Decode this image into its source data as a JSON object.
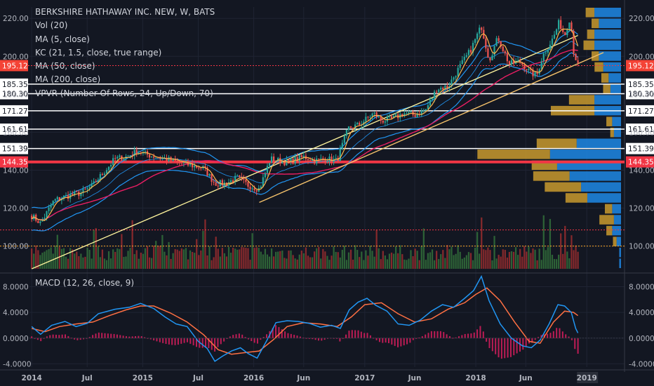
{
  "header": {
    "symbol_title": "BERKSHIRE HATHAWAY INC. NEW, W, BATS",
    "indicators": [
      "Vol (20)",
      "MA (5, close)",
      "KC (21, 1.5, close, true range)",
      "MA (50, close)",
      "MA (200, close)",
      "VPVR (Number Of Rows, 24, Up/Down, 70)"
    ]
  },
  "macd_panel": {
    "title": "MACD (12, 26, close, 9)"
  },
  "colors": {
    "background": "#131722",
    "up": "#26a69a",
    "down": "#ef5350",
    "ma5": "#ffb74d",
    "kc": "#2196f3",
    "ma50": "#e91e63",
    "ma200": "#fff59d",
    "trendline": "#f5c26b",
    "macd": "#2196f3",
    "signal": "#ff7043",
    "hist": "#e91e63",
    "vp_up": "#1e88e5",
    "vp_down": "#c99a2e",
    "price_label": "#f44336",
    "vol_up": "#43a047",
    "vol_down": "#e53935"
  },
  "chart_data": [
    {
      "type": "candlestick",
      "title": "BERKSHIRE HATHAWAY INC. NEW, W, BATS",
      "y_ticks": [
        100,
        120,
        140,
        160,
        180,
        200,
        220
      ],
      "y_tick_labels": [
        "100.00",
        "120.00",
        "140.00",
        "160.00",
        "180.00",
        "200.00",
        "220.00"
      ],
      "ylim": [
        88,
        226
      ],
      "x_tick_labels": [
        "2014",
        "Jul",
        "2015",
        "Jul",
        "2016",
        "Jun",
        "2017",
        "Jun",
        "2018",
        "Jun",
        "2019"
      ],
      "x_tick_times": [
        2014.0,
        2014.5,
        2015.0,
        2015.5,
        2016.0,
        2016.45,
        2017.0,
        2017.45,
        2018.0,
        2018.45,
        2019.0
      ],
      "xlim": [
        2013.98,
        2019.15
      ],
      "price_anchors": [
        [
          2014.0,
          116
        ],
        [
          2014.08,
          112
        ],
        [
          2014.2,
          124
        ],
        [
          2014.35,
          127
        ],
        [
          2014.45,
          128
        ],
        [
          2014.55,
          132
        ],
        [
          2014.65,
          139
        ],
        [
          2014.75,
          146
        ],
        [
          2014.85,
          147
        ],
        [
          2014.95,
          150
        ],
        [
          2015.05,
          148
        ],
        [
          2015.2,
          146
        ],
        [
          2015.4,
          143
        ],
        [
          2015.55,
          141
        ],
        [
          2015.65,
          133
        ],
        [
          2015.75,
          133
        ],
        [
          2015.85,
          136
        ],
        [
          2015.95,
          132
        ],
        [
          2016.05,
          130
        ],
        [
          2016.15,
          146
        ],
        [
          2016.3,
          144
        ],
        [
          2016.45,
          147
        ],
        [
          2016.55,
          145
        ],
        [
          2016.65,
          146
        ],
        [
          2016.75,
          145
        ],
        [
          2016.85,
          162
        ],
        [
          2016.95,
          164
        ],
        [
          2017.08,
          170
        ],
        [
          2017.15,
          166
        ],
        [
          2017.25,
          167
        ],
        [
          2017.35,
          170
        ],
        [
          2017.45,
          169
        ],
        [
          2017.55,
          172
        ],
        [
          2017.65,
          183
        ],
        [
          2017.75,
          184
        ],
        [
          2017.85,
          194
        ],
        [
          2017.95,
          203
        ],
        [
          2018.05,
          216
        ],
        [
          2018.12,
          198
        ],
        [
          2018.2,
          210
        ],
        [
          2018.3,
          196
        ],
        [
          2018.4,
          197
        ],
        [
          2018.5,
          191
        ],
        [
          2018.55,
          190
        ],
        [
          2018.6,
          200
        ],
        [
          2018.7,
          210
        ],
        [
          2018.75,
          218
        ],
        [
          2018.8,
          211
        ],
        [
          2018.85,
          221
        ],
        [
          2018.88,
          203
        ],
        [
          2018.92,
          195
        ]
      ],
      "horizontal_levels": [
        {
          "label": "185.35",
          "value": 185.35
        },
        {
          "label": "180.30",
          "value": 180.3
        },
        {
          "label": "171.27",
          "value": 171.27
        },
        {
          "label": "161.61",
          "value": 161.61
        },
        {
          "label": "151.39",
          "value": 151.39
        },
        {
          "label": "144.35",
          "value": 144.35,
          "highlight": true
        }
      ],
      "last_price": {
        "label": "195.12",
        "value": 195.12
      },
      "ma200_anchors": [
        [
          2014.0,
          88
        ],
        [
          2018.92,
          211
        ]
      ],
      "trendlines": [
        {
          "name": "",
          "points": [
            [
              2016.05,
              123
            ],
            [
              2019.15,
              202
            ]
          ]
        }
      ],
      "volume_profile": {
        "rows_top_to_bottom": [
          {
            "up": 0.3,
            "down": 0.12
          },
          {
            "up": 0.25,
            "down": 0.1
          },
          {
            "up": 0.3,
            "down": 0.1
          },
          {
            "up": 0.3,
            "down": 0.15
          },
          {
            "up": 0.25,
            "down": 0.1
          },
          {
            "up": 0.2,
            "down": 0.12
          },
          {
            "up": 0.14,
            "down": 0.1
          },
          {
            "up": 0.12,
            "down": 0.1
          },
          {
            "up": 0.3,
            "down": 0.35
          },
          {
            "up": 0.3,
            "down": 0.6
          },
          {
            "up": 0.1,
            "down": 0.08
          },
          {
            "up": 0.08,
            "down": 0.05
          },
          {
            "up": 0.5,
            "down": 0.55
          },
          {
            "up": 0.8,
            "down": 1.0
          },
          {
            "up": 0.72,
            "down": 0.35
          },
          {
            "up": 0.58,
            "down": 0.5
          },
          {
            "up": 0.45,
            "down": 0.5
          },
          {
            "up": 0.38,
            "down": 0.3
          },
          {
            "up": 0.1,
            "down": 0.1
          },
          {
            "up": 0.08,
            "down": 0.2
          },
          {
            "up": 0.1,
            "down": 0.08
          },
          {
            "up": 0.05,
            "down": 0.05
          },
          {
            "up": 0.02,
            "down": 0.0
          },
          {
            "up": 0.02,
            "down": 0.0
          }
        ]
      }
    },
    {
      "type": "line",
      "title": "MACD (12, 26, close, 9)",
      "y_ticks": [
        -4,
        0,
        4,
        8
      ],
      "y_tick_labels": [
        "-4.0000",
        "0.0000",
        "4.0000",
        "8.0000"
      ],
      "ylim": [
        -4.5,
        9.8
      ],
      "xlim": [
        2013.98,
        2019.15
      ],
      "series": [
        {
          "name": "",
          "points": [
            [
              2014.0,
              1.8
            ],
            [
              2014.08,
              0.6
            ],
            [
              2014.18,
              2.0
            ],
            [
              2014.3,
              2.6
            ],
            [
              2014.4,
              1.8
            ],
            [
              2014.5,
              2.3
            ],
            [
              2014.6,
              3.8
            ],
            [
              2014.75,
              4.5
            ],
            [
              2014.88,
              4.8
            ],
            [
              2014.98,
              5.4
            ],
            [
              2015.1,
              4.6
            ],
            [
              2015.2,
              3.3
            ],
            [
              2015.3,
              2.2
            ],
            [
              2015.4,
              1.8
            ],
            [
              2015.5,
              -0.5
            ],
            [
              2015.58,
              -1.6
            ],
            [
              2015.65,
              -3.6
            ],
            [
              2015.72,
              -2.8
            ],
            [
              2015.8,
              -2.0
            ],
            [
              2015.88,
              -1.5
            ],
            [
              2015.95,
              -2.4
            ],
            [
              2016.03,
              -3.1
            ],
            [
              2016.12,
              -0.3
            ],
            [
              2016.2,
              2.4
            ],
            [
              2016.3,
              2.7
            ],
            [
              2016.4,
              2.6
            ],
            [
              2016.5,
              2.3
            ],
            [
              2016.6,
              1.7
            ],
            [
              2016.7,
              2.0
            ],
            [
              2016.78,
              1.5
            ],
            [
              2016.86,
              4.4
            ],
            [
              2016.94,
              5.6
            ],
            [
              2017.02,
              6.2
            ],
            [
              2017.1,
              5.1
            ],
            [
              2017.2,
              4.2
            ],
            [
              2017.3,
              2.2
            ],
            [
              2017.4,
              2.0
            ],
            [
              2017.5,
              2.8
            ],
            [
              2017.6,
              4.2
            ],
            [
              2017.7,
              5.2
            ],
            [
              2017.8,
              4.8
            ],
            [
              2017.9,
              6.2
            ],
            [
              2017.98,
              7.4
            ],
            [
              2018.05,
              9.6
            ],
            [
              2018.12,
              5.8
            ],
            [
              2018.22,
              2.2
            ],
            [
              2018.32,
              0.0
            ],
            [
              2018.42,
              -1.2
            ],
            [
              2018.5,
              -1.5
            ],
            [
              2018.58,
              -0.3
            ],
            [
              2018.66,
              2.2
            ],
            [
              2018.74,
              5.2
            ],
            [
              2018.8,
              5.0
            ],
            [
              2018.86,
              4.0
            ],
            [
              2018.9,
              1.5
            ],
            [
              2018.92,
              0.8
            ]
          ]
        },
        {
          "name": "",
          "points": [
            [
              2014.0,
              1.5
            ],
            [
              2014.12,
              1.0
            ],
            [
              2014.25,
              1.8
            ],
            [
              2014.4,
              2.2
            ],
            [
              2014.55,
              2.5
            ],
            [
              2014.7,
              3.5
            ],
            [
              2014.85,
              4.4
            ],
            [
              2014.98,
              5.0
            ],
            [
              2015.1,
              5.0
            ],
            [
              2015.25,
              3.9
            ],
            [
              2015.4,
              2.5
            ],
            [
              2015.55,
              0.5
            ],
            [
              2015.68,
              -1.8
            ],
            [
              2015.8,
              -2.5
            ],
            [
              2015.95,
              -2.2
            ],
            [
              2016.05,
              -2.0
            ],
            [
              2016.18,
              -0.2
            ],
            [
              2016.3,
              1.8
            ],
            [
              2016.45,
              2.4
            ],
            [
              2016.6,
              2.2
            ],
            [
              2016.75,
              1.8
            ],
            [
              2016.88,
              3.3
            ],
            [
              2017.0,
              5.2
            ],
            [
              2017.15,
              5.5
            ],
            [
              2017.3,
              3.8
            ],
            [
              2017.45,
              2.5
            ],
            [
              2017.6,
              3.0
            ],
            [
              2017.75,
              4.5
            ],
            [
              2017.9,
              5.5
            ],
            [
              2018.0,
              6.8
            ],
            [
              2018.1,
              7.8
            ],
            [
              2018.22,
              5.8
            ],
            [
              2018.35,
              2.5
            ],
            [
              2018.48,
              -0.5
            ],
            [
              2018.58,
              -0.8
            ],
            [
              2018.7,
              2.5
            ],
            [
              2018.8,
              4.2
            ],
            [
              2018.88,
              4.0
            ],
            [
              2018.92,
              3.5
            ]
          ]
        }
      ]
    }
  ]
}
